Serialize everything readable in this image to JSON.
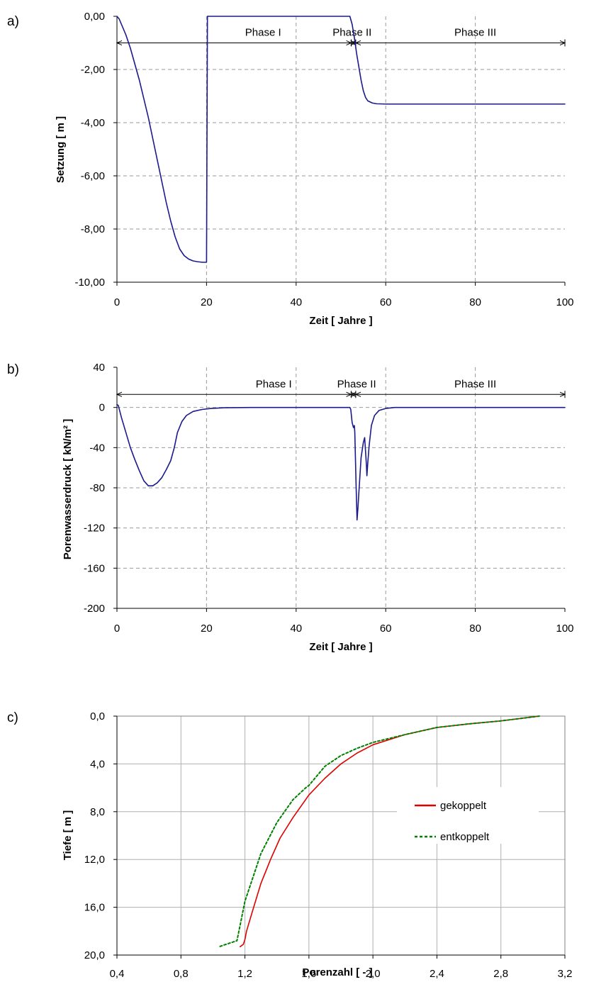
{
  "chart_data": [
    {
      "type": "line",
      "panel_label": "a)",
      "xlabel": "Zeit [ Jahre ]",
      "ylabel": "Setzung [ m ]",
      "xlim": [
        0,
        100
      ],
      "ylim": [
        -10,
        0
      ],
      "x_ticks": [
        0,
        20,
        40,
        60,
        80,
        100
      ],
      "y_ticks": [
        0,
        -2,
        -4,
        -6,
        -8,
        -10
      ],
      "x_tick_labels": [
        "0",
        "20",
        "40",
        "60",
        "80",
        "100"
      ],
      "y_tick_labels": [
        "0,00",
        "-2,00",
        "-4,00",
        "-6,00",
        "-8,00",
        "-10,00"
      ],
      "grid": "dashed",
      "phase_arrow_y": -1.0,
      "phases": [
        {
          "label": "Phase I",
          "x_start": 0,
          "x_end": 52.3
        },
        {
          "label": "Phase II",
          "x_start": 52.3,
          "x_end": 53.3
        },
        {
          "label": "Phase III",
          "x_start": 53.3,
          "x_end": 100
        }
      ],
      "phase_label_x": [
        35,
        52.5,
        80
      ],
      "series": [
        {
          "color": "#1a1a8c",
          "points": [
            [
              0,
              0
            ],
            [
              0.5,
              -0.1
            ],
            [
              1,
              -0.3
            ],
            [
              2,
              -0.7
            ],
            [
              3,
              -1.2
            ],
            [
              4,
              -1.8
            ],
            [
              5,
              -2.4
            ],
            [
              6,
              -3.1
            ],
            [
              7,
              -3.8
            ],
            [
              8,
              -4.6
            ],
            [
              9,
              -5.4
            ],
            [
              10,
              -6.2
            ],
            [
              11,
              -7.0
            ],
            [
              12,
              -7.7
            ],
            [
              13,
              -8.3
            ],
            [
              14,
              -8.75
            ],
            [
              15,
              -9.0
            ],
            [
              16,
              -9.13
            ],
            [
              17,
              -9.2
            ],
            [
              18,
              -9.23
            ],
            [
              19,
              -9.25
            ],
            [
              20,
              -9.25
            ],
            [
              20.2,
              0
            ],
            [
              52,
              0
            ],
            [
              52.5,
              -0.3
            ],
            [
              53,
              -0.8
            ],
            [
              53.5,
              -1.4
            ],
            [
              54,
              -1.9
            ],
            [
              54.5,
              -2.4
            ],
            [
              55,
              -2.8
            ],
            [
              55.5,
              -3.05
            ],
            [
              56,
              -3.18
            ],
            [
              57,
              -3.26
            ],
            [
              58,
              -3.29
            ],
            [
              60,
              -3.3
            ],
            [
              70,
              -3.3
            ],
            [
              80,
              -3.3
            ],
            [
              90,
              -3.3
            ],
            [
              100,
              -3.3
            ]
          ]
        }
      ]
    },
    {
      "type": "line",
      "panel_label": "b)",
      "xlabel": "Zeit [ Jahre ]",
      "ylabel": "Porenwasserdruck [ kN/m² ]",
      "xlim": [
        0,
        100
      ],
      "ylim": [
        -200,
        40
      ],
      "x_ticks": [
        0,
        20,
        40,
        60,
        80,
        100
      ],
      "y_ticks": [
        40,
        0,
        -40,
        -80,
        -120,
        -160,
        -200
      ],
      "x_tick_labels": [
        "0",
        "20",
        "40",
        "60",
        "80",
        "100"
      ],
      "y_tick_labels": [
        "40",
        "0",
        "-40",
        "-80",
        "-120",
        "-160",
        "-200"
      ],
      "grid": "dashed",
      "phase_arrow_y": 13,
      "phases": [
        {
          "label": "Phase I",
          "x_start": 0,
          "x_end": 52.3
        },
        {
          "label": "Phase II",
          "x_start": 52.3,
          "x_end": 53.3
        },
        {
          "label": "Phase III",
          "x_start": 53.3,
          "x_end": 100
        }
      ],
      "phase_label_x": [
        35,
        53.5,
        80
      ],
      "series": [
        {
          "color": "#1a1a8c",
          "points": [
            [
              0,
              3
            ],
            [
              0.3,
              2
            ],
            [
              1,
              -10
            ],
            [
              2,
              -25
            ],
            [
              3,
              -40
            ],
            [
              4,
              -52
            ],
            [
              5,
              -63
            ],
            [
              6,
              -73
            ],
            [
              7,
              -78
            ],
            [
              8,
              -78
            ],
            [
              9,
              -75
            ],
            [
              10,
              -70
            ],
            [
              11,
              -62
            ],
            [
              12,
              -53
            ],
            [
              12.8,
              -40
            ],
            [
              13.5,
              -25
            ],
            [
              14.5,
              -14
            ],
            [
              15.5,
              -8
            ],
            [
              17,
              -4
            ],
            [
              19,
              -2
            ],
            [
              21,
              -1
            ],
            [
              24,
              -0.3
            ],
            [
              30,
              0
            ],
            [
              40,
              0
            ],
            [
              52,
              0
            ],
            [
              52.2,
              -2
            ],
            [
              52.5,
              -15
            ],
            [
              52.8,
              -20
            ],
            [
              53,
              -18
            ],
            [
              53.1,
              -25
            ],
            [
              53.4,
              -80
            ],
            [
              53.6,
              -112
            ],
            [
              53.8,
              -100
            ],
            [
              54,
              -85
            ],
            [
              54.5,
              -50
            ],
            [
              55,
              -35
            ],
            [
              55.3,
              -30
            ],
            [
              55.7,
              -58
            ],
            [
              55.8,
              -68
            ],
            [
              56,
              -55
            ],
            [
              56.3,
              -38
            ],
            [
              56.8,
              -18
            ],
            [
              57.5,
              -8
            ],
            [
              58.5,
              -3
            ],
            [
              60,
              -1
            ],
            [
              62,
              0
            ],
            [
              70,
              0
            ],
            [
              80,
              0
            ],
            [
              90,
              0
            ],
            [
              100,
              0
            ]
          ]
        }
      ]
    },
    {
      "type": "line",
      "panel_label": "c)",
      "xlabel": "Porenzahl [ - ]",
      "ylabel": "Tiefe [ m ]",
      "xlim": [
        0.4,
        3.2
      ],
      "ylim": [
        0,
        20
      ],
      "y_inverted": true,
      "x_ticks": [
        0.4,
        0.8,
        1.2,
        1.6,
        2.0,
        2.4,
        2.8,
        3.2
      ],
      "y_ticks": [
        0,
        4,
        8,
        12,
        16,
        20
      ],
      "x_tick_labels": [
        "0,4",
        "0,8",
        "1,2",
        "1,6",
        "2,0",
        "2,4",
        "2,8",
        "3,2"
      ],
      "y_tick_labels": [
        "0,0",
        "4,0",
        "8,0",
        "12,0",
        "16,0",
        "20,0"
      ],
      "grid": "solid",
      "legend": "inside-lower-right",
      "series": [
        {
          "name": "gekoppelt",
          "color": "#e00000",
          "style": "solid",
          "points": [
            [
              3.04,
              0
            ],
            [
              2.8,
              0.4
            ],
            [
              2.6,
              0.65
            ],
            [
              2.4,
              0.95
            ],
            [
              2.2,
              1.55
            ],
            [
              2.0,
              2.4
            ],
            [
              1.9,
              3.1
            ],
            [
              1.8,
              4.0
            ],
            [
              1.7,
              5.2
            ],
            [
              1.6,
              6.6
            ],
            [
              1.5,
              8.5
            ],
            [
              1.42,
              10.2
            ],
            [
              1.36,
              12.0
            ],
            [
              1.3,
              14.0
            ],
            [
              1.25,
              16.2
            ],
            [
              1.21,
              18.0
            ],
            [
              1.2,
              18.7
            ],
            [
              1.19,
              19.1
            ],
            [
              1.17,
              19.3
            ]
          ]
        },
        {
          "name": "entkoppelt",
          "color": "#008000",
          "style": "dotted",
          "points": [
            [
              3.04,
              0
            ],
            [
              2.8,
              0.4
            ],
            [
              2.6,
              0.65
            ],
            [
              2.4,
              0.95
            ],
            [
              2.2,
              1.55
            ],
            [
              2.0,
              2.2
            ],
            [
              1.9,
              2.7
            ],
            [
              1.8,
              3.3
            ],
            [
              1.7,
              4.2
            ],
            [
              1.6,
              5.8
            ],
            [
              1.58,
              6.0
            ],
            [
              1.5,
              7.0
            ],
            [
              1.4,
              8.9
            ],
            [
              1.3,
              11.5
            ],
            [
              1.25,
              13.5
            ],
            [
              1.2,
              15.5
            ],
            [
              1.17,
              17.5
            ],
            [
              1.15,
              18.8
            ],
            [
              1.06,
              19.2
            ],
            [
              1.04,
              19.3
            ]
          ]
        }
      ]
    }
  ]
}
